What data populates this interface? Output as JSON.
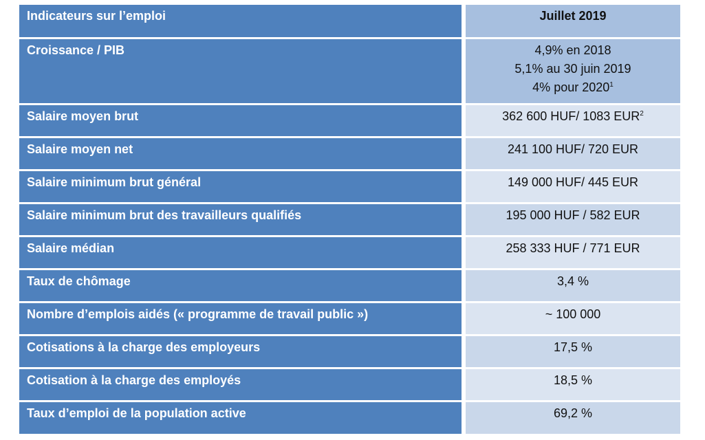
{
  "table": {
    "header": {
      "label": "Indicateurs sur l’emploi",
      "value": "Juillet 2019"
    },
    "growth": {
      "label": "Croissance / PIB",
      "lines": [
        "4,9% en 2018",
        "5,1% au 30 juin 2019",
        "4% pour 2020"
      ],
      "footnote": "1"
    },
    "rows": [
      {
        "label": "Salaire moyen brut",
        "value": "362 600 HUF/ 1083 EUR",
        "footnote": "2"
      },
      {
        "label": "Salaire moyen net",
        "value": "241 100 HUF/ 720 EUR"
      },
      {
        "label": "Salaire minimum brut général",
        "value": "149 000 HUF/ 445 EUR"
      },
      {
        "label": "Salaire minimum brut des travailleurs qualifiés",
        "value": "195 000 HUF / 582 EUR"
      },
      {
        "label": "Salaire médian",
        "value": "258 333 HUF / 771 EUR"
      },
      {
        "label": "Taux de chômage",
        "value": "3,4 %"
      },
      {
        "label": "Nombre d’emplois aidés (« programme de travail public »)",
        "value": "~ 100 000"
      },
      {
        "label": "Cotisations à la charge des employeurs",
        "value": "17,5 %"
      },
      {
        "label": "Cotisation à la charge des employés",
        "value": "18,5 %"
      },
      {
        "label": "Taux d’emploi de la population active",
        "value": "69,2 %"
      }
    ]
  }
}
